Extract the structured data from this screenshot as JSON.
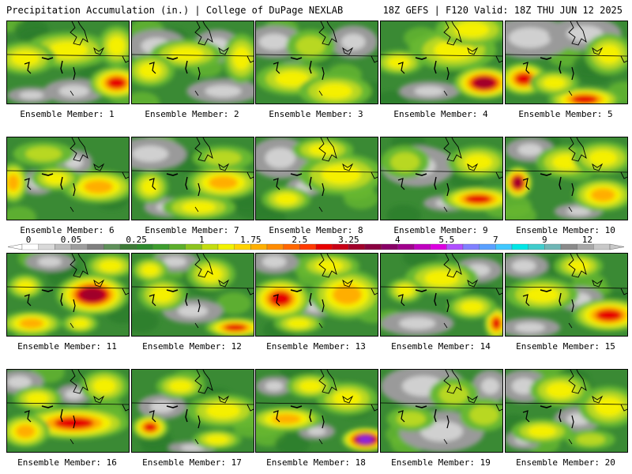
{
  "header": {
    "left": "Precipitation Accumulation (in.) | College of DuPage NEXLAB",
    "right": "18Z GEFS | F120 Valid: 18Z THU JUN 12 2025"
  },
  "members": [
    {
      "label": "Ensemble Member: 1",
      "blobs": [
        [
          0.5,
          0.35,
          0.35,
          0.22,
          3
        ],
        [
          0.9,
          0.75,
          0.22,
          0.2,
          5
        ],
        [
          0.15,
          0.45,
          0.25,
          0.2,
          3
        ],
        [
          0.9,
          0.3,
          0.15,
          0.25,
          3
        ]
      ],
      "greys": [
        [
          0.55,
          0.85,
          0.25,
          0.15
        ],
        [
          0.2,
          0.9,
          0.2,
          0.1
        ]
      ]
    },
    {
      "label": "Ensemble Member: 2",
      "blobs": [
        [
          0.45,
          0.4,
          0.3,
          0.18,
          3
        ],
        [
          0.15,
          0.6,
          0.2,
          0.2,
          3
        ],
        [
          0.9,
          0.45,
          0.15,
          0.3,
          3
        ]
      ],
      "greys": [
        [
          0.2,
          0.3,
          0.25,
          0.2
        ],
        [
          0.7,
          0.3,
          0.2,
          0.2
        ],
        [
          0.75,
          0.85,
          0.3,
          0.15
        ]
      ]
    },
    {
      "label": "Ensemble Member: 3",
      "blobs": [
        [
          0.3,
          0.7,
          0.3,
          0.2,
          3
        ],
        [
          0.65,
          0.85,
          0.3,
          0.2,
          3
        ],
        [
          0.45,
          0.3,
          0.2,
          0.2,
          2
        ]
      ],
      "greys": [
        [
          0.15,
          0.25,
          0.25,
          0.2
        ],
        [
          0.8,
          0.25,
          0.2,
          0.2
        ],
        [
          0.3,
          0.6,
          0.15,
          0.12
        ]
      ]
    },
    {
      "label": "Ensemble Member: 4",
      "blobs": [
        [
          0.6,
          0.35,
          0.35,
          0.25,
          3
        ],
        [
          0.85,
          0.75,
          0.25,
          0.2,
          6
        ],
        [
          0.15,
          0.5,
          0.2,
          0.15,
          3
        ],
        [
          0.75,
          0.1,
          0.3,
          0.2,
          3
        ]
      ],
      "greys": [
        [
          0.4,
          0.85,
          0.25,
          0.12
        ]
      ]
    },
    {
      "label": "Ensemble Member: 5",
      "blobs": [
        [
          0.15,
          0.7,
          0.2,
          0.2,
          5
        ],
        [
          0.65,
          0.95,
          0.3,
          0.15,
          5
        ],
        [
          0.85,
          0.4,
          0.2,
          0.25,
          3
        ],
        [
          0.4,
          0.75,
          0.2,
          0.15,
          3
        ]
      ],
      "greys": [
        [
          0.2,
          0.2,
          0.35,
          0.25
        ],
        [
          0.65,
          0.15,
          0.3,
          0.2
        ]
      ]
    },
    {
      "label": "Ensemble Member: 6",
      "blobs": [
        [
          0.75,
          0.6,
          0.3,
          0.2,
          4
        ],
        [
          0.05,
          0.55,
          0.12,
          0.25,
          4
        ],
        [
          0.4,
          0.5,
          0.2,
          0.15,
          3
        ],
        [
          0.3,
          0.2,
          0.25,
          0.15,
          2
        ]
      ],
      "greys": [
        [
          0.25,
          0.55,
          0.15,
          0.15
        ],
        [
          0.55,
          0.3,
          0.15,
          0.15
        ]
      ]
    },
    {
      "label": "Ensemble Member: 7",
      "blobs": [
        [
          0.75,
          0.55,
          0.3,
          0.2,
          4
        ],
        [
          0.15,
          0.6,
          0.15,
          0.2,
          3
        ],
        [
          0.55,
          0.85,
          0.3,
          0.15,
          3
        ],
        [
          0.75,
          0.25,
          0.25,
          0.15,
          2
        ]
      ],
      "greys": [
        [
          0.15,
          0.2,
          0.3,
          0.2
        ],
        [
          0.3,
          0.85,
          0.2,
          0.12
        ]
      ]
    },
    {
      "label": "Ensemble Member: 8",
      "blobs": [
        [
          0.7,
          0.45,
          0.35,
          0.25,
          3
        ],
        [
          0.25,
          0.75,
          0.2,
          0.15,
          3
        ],
        [
          0.55,
          0.15,
          0.25,
          0.15,
          3
        ]
      ],
      "greys": [
        [
          0.2,
          0.25,
          0.25,
          0.25
        ],
        [
          0.4,
          0.6,
          0.15,
          0.12
        ]
      ]
    },
    {
      "label": "Ensemble Member: 9",
      "blobs": [
        [
          0.8,
          0.75,
          0.3,
          0.15,
          5
        ],
        [
          0.8,
          0.3,
          0.25,
          0.2,
          3
        ],
        [
          0.2,
          0.3,
          0.2,
          0.2,
          2
        ]
      ],
      "greys": [
        [
          0.3,
          0.35,
          0.3,
          0.25
        ],
        [
          0.55,
          0.8,
          0.2,
          0.1
        ]
      ]
    },
    {
      "label": "Ensemble Member: 10",
      "blobs": [
        [
          0.1,
          0.55,
          0.12,
          0.2,
          6
        ],
        [
          0.8,
          0.7,
          0.25,
          0.2,
          4
        ],
        [
          0.5,
          0.3,
          0.25,
          0.2,
          3
        ],
        [
          0.8,
          0.25,
          0.25,
          0.2,
          3
        ]
      ],
      "greys": [
        [
          0.2,
          0.15,
          0.2,
          0.15
        ],
        [
          0.6,
          0.9,
          0.2,
          0.1
        ]
      ]
    },
    {
      "label": "Ensemble Member: 11",
      "blobs": [
        [
          0.7,
          0.5,
          0.3,
          0.25,
          6
        ],
        [
          0.2,
          0.85,
          0.25,
          0.15,
          4
        ],
        [
          0.6,
          0.85,
          0.15,
          0.12,
          3
        ],
        [
          0.15,
          0.4,
          0.15,
          0.15,
          3
        ],
        [
          0.85,
          0.15,
          0.2,
          0.15,
          3
        ]
      ],
      "greys": [
        [
          0.35,
          0.1,
          0.2,
          0.12
        ]
      ]
    },
    {
      "label": "Ensemble Member: 12",
      "blobs": [
        [
          0.85,
          0.9,
          0.25,
          0.12,
          5
        ],
        [
          0.25,
          0.5,
          0.2,
          0.2,
          3
        ],
        [
          0.65,
          0.25,
          0.2,
          0.2,
          3
        ],
        [
          0.15,
          0.2,
          0.15,
          0.15,
          3
        ]
      ],
      "greys": [
        [
          0.5,
          0.7,
          0.25,
          0.15
        ],
        [
          0.35,
          0.1,
          0.2,
          0.12
        ]
      ]
    },
    {
      "label": "Ensemble Member: 13",
      "blobs": [
        [
          0.2,
          0.55,
          0.25,
          0.25,
          5
        ],
        [
          0.75,
          0.5,
          0.3,
          0.3,
          4
        ],
        [
          0.35,
          0.85,
          0.2,
          0.12,
          3
        ],
        [
          0.6,
          0.15,
          0.25,
          0.15,
          3
        ]
      ],
      "greys": [
        [
          0.15,
          0.1,
          0.2,
          0.15
        ],
        [
          0.5,
          0.65,
          0.2,
          0.12
        ]
      ]
    },
    {
      "label": "Ensemble Member: 14",
      "blobs": [
        [
          0.5,
          0.3,
          0.3,
          0.2,
          3
        ],
        [
          0.95,
          0.85,
          0.1,
          0.2,
          5
        ],
        [
          0.2,
          0.45,
          0.15,
          0.15,
          3
        ],
        [
          0.75,
          0.65,
          0.2,
          0.15,
          3
        ]
      ],
      "greys": [
        [
          0.3,
          0.85,
          0.3,
          0.15
        ],
        [
          0.8,
          0.2,
          0.2,
          0.15
        ]
      ]
    },
    {
      "label": "Ensemble Member: 15",
      "blobs": [
        [
          0.85,
          0.75,
          0.3,
          0.2,
          5
        ],
        [
          0.3,
          0.5,
          0.3,
          0.2,
          3
        ],
        [
          0.6,
          0.15,
          0.2,
          0.15,
          3
        ]
      ],
      "greys": [
        [
          0.15,
          0.15,
          0.2,
          0.15
        ],
        [
          0.6,
          0.55,
          0.2,
          0.15
        ],
        [
          0.2,
          0.9,
          0.25,
          0.12
        ]
      ]
    },
    {
      "label": "Ensemble Member: 16",
      "blobs": [
        [
          0.55,
          0.65,
          0.45,
          0.2,
          5
        ],
        [
          0.15,
          0.75,
          0.2,
          0.2,
          4
        ],
        [
          0.25,
          0.35,
          0.2,
          0.15,
          3
        ],
        [
          0.8,
          0.2,
          0.2,
          0.2,
          3
        ]
      ],
      "greys": [
        [
          0.1,
          0.15,
          0.2,
          0.15
        ],
        [
          0.55,
          0.3,
          0.15,
          0.12
        ]
      ]
    },
    {
      "label": "Ensemble Member: 17",
      "blobs": [
        [
          0.75,
          0.5,
          0.3,
          0.2,
          3
        ],
        [
          0.15,
          0.7,
          0.15,
          0.15,
          5
        ],
        [
          0.4,
          0.2,
          0.2,
          0.15,
          3
        ],
        [
          0.7,
          0.85,
          0.2,
          0.12,
          3
        ]
      ],
      "greys": [
        [
          0.25,
          0.45,
          0.2,
          0.15
        ],
        [
          0.5,
          0.95,
          0.2,
          0.08
        ]
      ]
    },
    {
      "label": "Ensemble Member: 18",
      "blobs": [
        [
          0.9,
          0.85,
          0.2,
          0.15,
          7
        ],
        [
          0.25,
          0.6,
          0.3,
          0.15,
          4
        ],
        [
          0.75,
          0.35,
          0.25,
          0.2,
          3
        ],
        [
          0.45,
          0.2,
          0.2,
          0.15,
          3
        ]
      ],
      "greys": [
        [
          0.15,
          0.2,
          0.15,
          0.12
        ],
        [
          0.5,
          0.75,
          0.15,
          0.1
        ]
      ]
    },
    {
      "label": "Ensemble Member: 19",
      "blobs": [
        [
          0.6,
          0.3,
          0.2,
          0.2,
          2
        ],
        [
          0.85,
          0.55,
          0.2,
          0.2,
          2
        ],
        [
          0.25,
          0.6,
          0.2,
          0.15,
          2
        ]
      ],
      "greys": [
        [
          0.35,
          0.2,
          0.35,
          0.25
        ],
        [
          0.5,
          0.75,
          0.35,
          0.25
        ],
        [
          0.9,
          0.2,
          0.15,
          0.2
        ]
      ]
    },
    {
      "label": "Ensemble Member: 20",
      "blobs": [
        [
          0.45,
          0.25,
          0.25,
          0.2,
          3
        ],
        [
          0.85,
          0.45,
          0.25,
          0.25,
          3
        ],
        [
          0.3,
          0.75,
          0.25,
          0.15,
          3
        ],
        [
          0.7,
          0.85,
          0.2,
          0.12,
          2
        ]
      ],
      "greys": [
        [
          0.15,
          0.2,
          0.2,
          0.2
        ],
        [
          0.6,
          0.6,
          0.2,
          0.15
        ],
        [
          0.15,
          0.85,
          0.15,
          0.12
        ]
      ]
    }
  ],
  "scale": {
    "ticks": [
      {
        "label": "0",
        "at": 0
      },
      {
        "label": "0.05",
        "at": 3
      },
      {
        "label": "0.25",
        "at": 7
      },
      {
        "label": "1",
        "at": 11
      },
      {
        "label": "1.75",
        "at": 14
      },
      {
        "label": "2.5",
        "at": 17
      },
      {
        "label": "3.25",
        "at": 20
      },
      {
        "label": "4",
        "at": 23
      },
      {
        "label": "5.5",
        "at": 26
      },
      {
        "label": "7",
        "at": 29
      },
      {
        "label": "9",
        "at": 32
      },
      {
        "label": "12",
        "at": 35
      }
    ],
    "colors": [
      "#ffffff",
      "#d9d9d9",
      "#bcbcbc",
      "#9d9d9d",
      "#7f7f7f",
      "#5f8f5a",
      "#3e7b37",
      "#2f8a2f",
      "#3d9c2e",
      "#5cae2c",
      "#8cc41f",
      "#c4dd11",
      "#f2f200",
      "#ffd300",
      "#ffb000",
      "#ff8c00",
      "#ff6600",
      "#ff3a00",
      "#e80000",
      "#c80016",
      "#a0002a",
      "#8a0040",
      "#880066",
      "#a0008c",
      "#c000c0",
      "#dc00e0",
      "#b050ff",
      "#8080ff",
      "#5aa0ff",
      "#40c8ff",
      "#00e6e6",
      "#40cccc",
      "#6fb6b6",
      "#8a8a8a",
      "#a8a8a8",
      "#c8c8c8"
    ]
  },
  "palette": {
    "green_dark": "#2d7d2d",
    "green_mid": "#3a8a34",
    "green_light": "#67b830",
    "yellowgreen": "#b8d820",
    "yellow": "#f5f000",
    "orange": "#ffae00",
    "red": "#e60000",
    "darkred": "#a0002a",
    "purple": "#8a2be2",
    "grey": "#9a9a9a",
    "grey_light": "#d0d0d0"
  }
}
